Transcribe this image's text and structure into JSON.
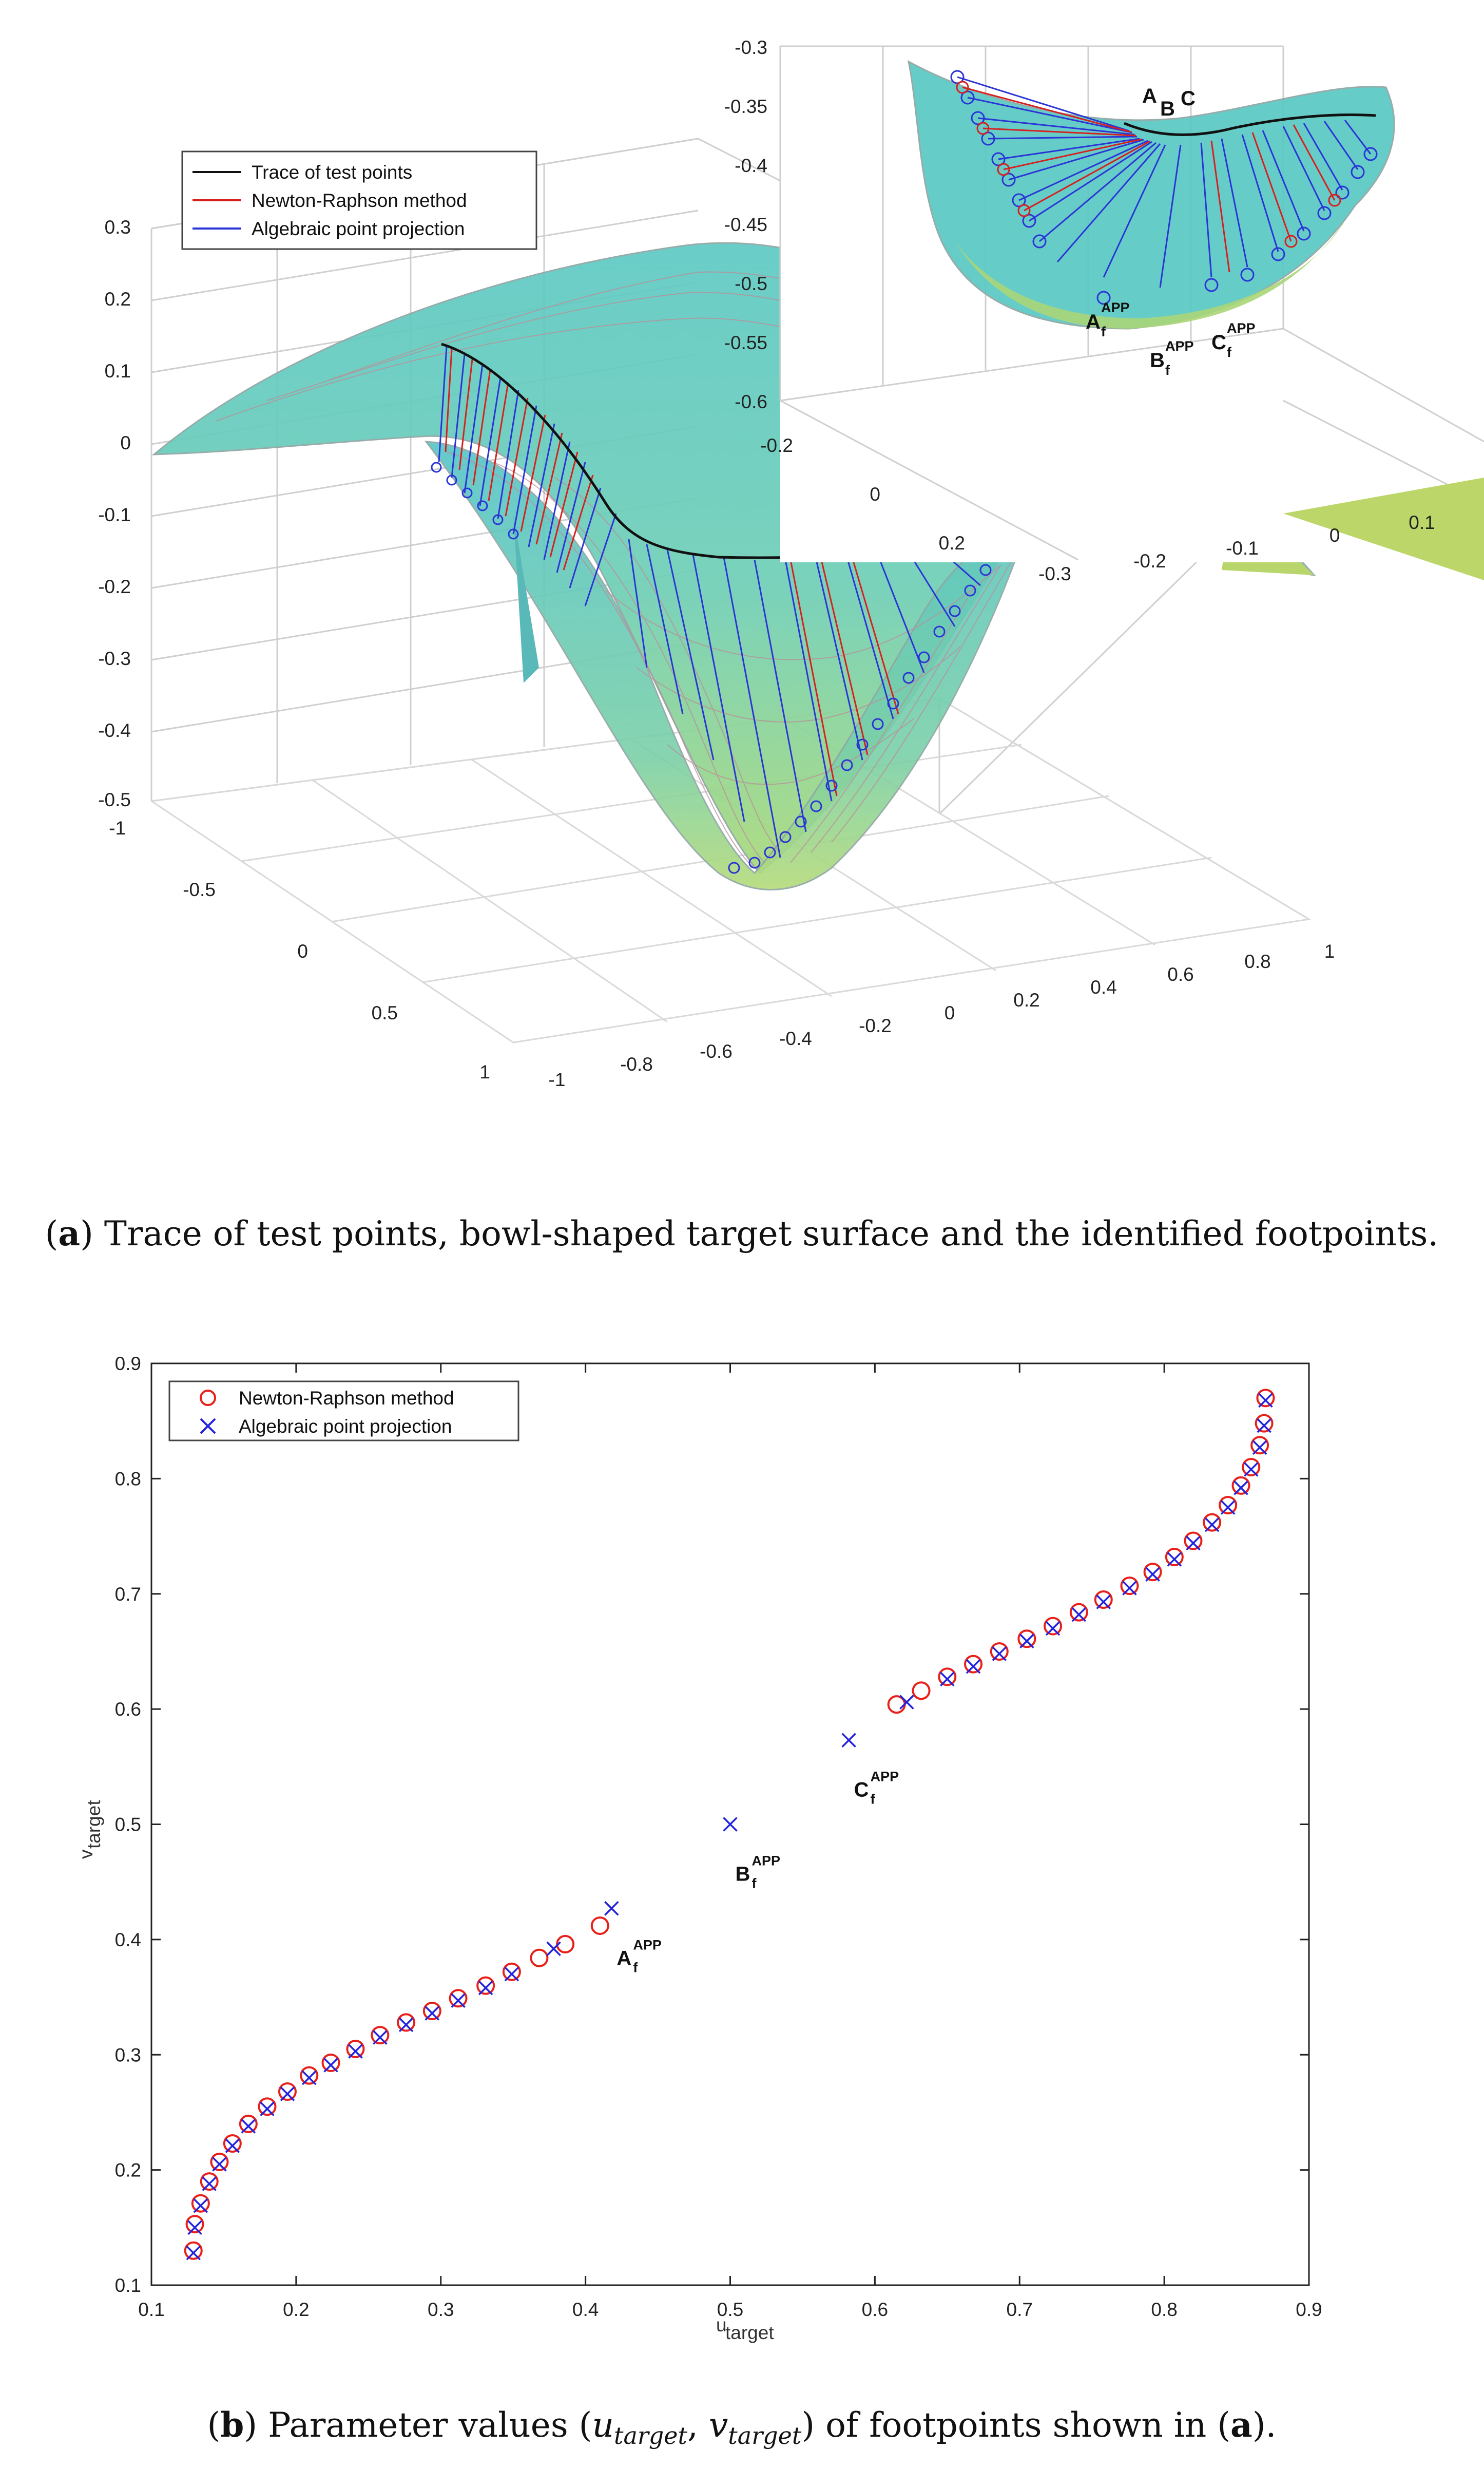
{
  "panel_a": {
    "caption_label": "a",
    "caption_text": "Trace of test points, bowl-shaped target surface and the identified footpoints.",
    "legend": [
      "Trace of test points",
      "Newton-Raphson method",
      "Algebraic point projection"
    ],
    "z_ticks": [
      "0.3",
      "0.2",
      "0.1",
      "0",
      "-0.1",
      "-0.2",
      "-0.3",
      "-0.4",
      "-0.5"
    ],
    "y_ticks": [
      "-1",
      "-0.5",
      "0",
      "0.5",
      "1"
    ],
    "x_ticks": [
      "-1",
      "-0.8",
      "-0.6",
      "-0.4",
      "-0.2",
      "0",
      "0.2",
      "0.4",
      "0.6",
      "0.8",
      "1"
    ],
    "inset": {
      "z_ticks": [
        "-0.3",
        "-0.35",
        "-0.4",
        "-0.45",
        "-0.5",
        "-0.55",
        "-0.6"
      ],
      "side_ticks": [
        "-0.2",
        "0",
        "0.2"
      ],
      "front_ticks": [
        "-0.3",
        "-0.2",
        "-0.1",
        "0",
        "0.1"
      ],
      "labels": [
        "A",
        "B",
        "C"
      ],
      "foot_labels": [
        {
          "base": "A",
          "sub": "f",
          "sup": "APP"
        },
        {
          "base": "B",
          "sub": "f",
          "sup": "APP"
        },
        {
          "base": "C",
          "sub": "f",
          "sup": "APP"
        }
      ]
    }
  },
  "panel_b": {
    "caption_label": "b",
    "caption_pre": "Parameter values (",
    "caption_u": "u",
    "caption_u_sub": "target",
    "caption_sep": ", ",
    "caption_v": "v",
    "caption_v_sub": "target",
    "caption_post": ") of footpoints shown in (",
    "caption_ref": "a",
    "caption_end": ")."
  },
  "chart_data": {
    "type": "scatter",
    "xlabel": "u_target",
    "ylabel": "v_target",
    "xlim": [
      0.1,
      0.9
    ],
    "ylim": [
      0.1,
      0.9
    ],
    "xticks": [
      "0.1",
      "0.2",
      "0.3",
      "0.4",
      "0.5",
      "0.6",
      "0.7",
      "0.8",
      "0.9"
    ],
    "yticks": [
      "0.1",
      "0.2",
      "0.3",
      "0.4",
      "0.5",
      "0.6",
      "0.7",
      "0.8",
      "0.9"
    ],
    "legend": {
      "position": "top-left",
      "entries": [
        "Newton-Raphson method",
        "Algebraic point projection"
      ]
    },
    "series": [
      {
        "name": "Newton-Raphson method",
        "marker": "o",
        "color": "#e8201a",
        "points": [
          [
            0.129,
            0.13
          ],
          [
            0.13,
            0.153
          ],
          [
            0.134,
            0.171
          ],
          [
            0.14,
            0.19
          ],
          [
            0.147,
            0.207
          ],
          [
            0.156,
            0.223
          ],
          [
            0.167,
            0.24
          ],
          [
            0.18,
            0.255
          ],
          [
            0.194,
            0.268
          ],
          [
            0.209,
            0.282
          ],
          [
            0.224,
            0.293
          ],
          [
            0.241,
            0.305
          ],
          [
            0.258,
            0.317
          ],
          [
            0.276,
            0.328
          ],
          [
            0.294,
            0.338
          ],
          [
            0.312,
            0.349
          ],
          [
            0.331,
            0.36
          ],
          [
            0.349,
            0.372
          ],
          [
            0.368,
            0.384
          ],
          [
            0.386,
            0.396
          ],
          [
            0.41,
            0.412
          ],
          [
            0.615,
            0.604
          ],
          [
            0.632,
            0.616
          ],
          [
            0.65,
            0.628
          ],
          [
            0.668,
            0.639
          ],
          [
            0.686,
            0.65
          ],
          [
            0.705,
            0.661
          ],
          [
            0.723,
            0.672
          ],
          [
            0.741,
            0.684
          ],
          [
            0.758,
            0.695
          ],
          [
            0.776,
            0.707
          ],
          [
            0.792,
            0.719
          ],
          [
            0.807,
            0.732
          ],
          [
            0.82,
            0.746
          ],
          [
            0.833,
            0.762
          ],
          [
            0.844,
            0.777
          ],
          [
            0.853,
            0.794
          ],
          [
            0.86,
            0.81
          ],
          [
            0.866,
            0.829
          ],
          [
            0.869,
            0.848
          ],
          [
            0.87,
            0.87
          ]
        ]
      },
      {
        "name": "Algebraic point projection",
        "marker": "x",
        "color": "#2222dd",
        "points": [
          [
            0.129,
            0.128
          ],
          [
            0.13,
            0.15
          ],
          [
            0.134,
            0.169
          ],
          [
            0.14,
            0.188
          ],
          [
            0.147,
            0.205
          ],
          [
            0.156,
            0.221
          ],
          [
            0.167,
            0.238
          ],
          [
            0.18,
            0.253
          ],
          [
            0.194,
            0.266
          ],
          [
            0.209,
            0.28
          ],
          [
            0.224,
            0.291
          ],
          [
            0.241,
            0.303
          ],
          [
            0.258,
            0.315
          ],
          [
            0.276,
            0.326
          ],
          [
            0.294,
            0.336
          ],
          [
            0.312,
            0.347
          ],
          [
            0.331,
            0.358
          ],
          [
            0.349,
            0.37
          ],
          [
            0.378,
            0.392
          ],
          [
            0.418,
            0.427
          ],
          [
            0.5,
            0.5
          ],
          [
            0.582,
            0.573
          ],
          [
            0.622,
            0.606
          ],
          [
            0.65,
            0.626
          ],
          [
            0.668,
            0.637
          ],
          [
            0.686,
            0.648
          ],
          [
            0.705,
            0.659
          ],
          [
            0.723,
            0.67
          ],
          [
            0.741,
            0.682
          ],
          [
            0.758,
            0.693
          ],
          [
            0.776,
            0.705
          ],
          [
            0.792,
            0.717
          ],
          [
            0.807,
            0.73
          ],
          [
            0.82,
            0.744
          ],
          [
            0.833,
            0.76
          ],
          [
            0.844,
            0.775
          ],
          [
            0.853,
            0.792
          ],
          [
            0.86,
            0.808
          ],
          [
            0.866,
            0.827
          ],
          [
            0.869,
            0.846
          ],
          [
            0.87,
            0.868
          ]
        ]
      }
    ],
    "annotations": [
      {
        "base": "A",
        "sub": "f",
        "sup": "APP",
        "x": 0.418,
        "y": 0.427
      },
      {
        "base": "B",
        "sub": "f",
        "sup": "APP",
        "x": 0.5,
        "y": 0.5
      },
      {
        "base": "C",
        "sub": "f",
        "sup": "APP",
        "x": 0.582,
        "y": 0.573
      }
    ]
  }
}
